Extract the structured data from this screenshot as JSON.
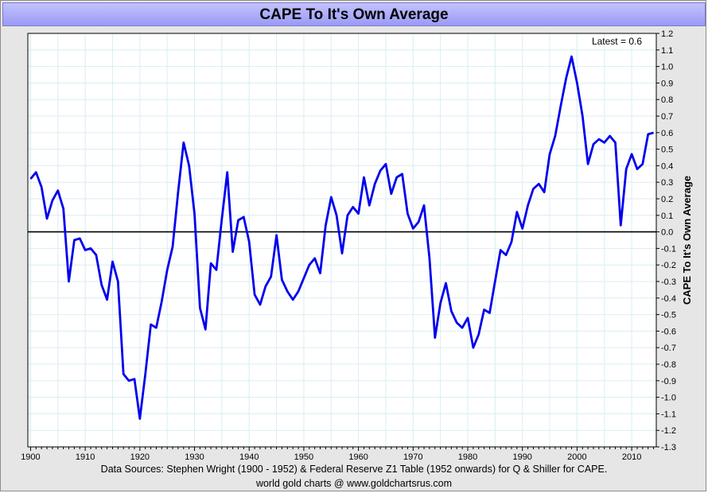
{
  "chart_data": {
    "type": "line",
    "title": "CAPE To It's Own Average",
    "ylabel": "CAPE To It's Own Average",
    "xlabel": "",
    "annotation": "Latest = 0.6",
    "xlim": [
      1899.5,
      2014.5
    ],
    "ylim": [
      -1.3,
      1.2
    ],
    "x_ticks": [
      1900,
      1910,
      1920,
      1930,
      1940,
      1950,
      1960,
      1970,
      1980,
      1990,
      2000,
      2010
    ],
    "y_ticks": [
      "1.2",
      "1.1",
      "1.0",
      "0.9",
      "0.8",
      "0.7",
      "0.6",
      "0.5",
      "0.4",
      "0.3",
      "0.2",
      "0.1",
      "0.0",
      "-0.1",
      "-0.2",
      "-0.3",
      "-0.4",
      "-0.5",
      "-0.6",
      "-0.7",
      "-0.8",
      "-0.9",
      "-1.0",
      "-1.1",
      "-1.2",
      "-1.3"
    ],
    "grid": true,
    "line_color": "#0000ee",
    "zero_line_color": "#000000",
    "series": [
      {
        "name": "",
        "x": [
          1900,
          1901,
          1902,
          1903,
          1904,
          1905,
          1906,
          1907,
          1908,
          1909,
          1910,
          1911,
          1912,
          1913,
          1914,
          1915,
          1916,
          1917,
          1918,
          1919,
          1920,
          1921,
          1922,
          1923,
          1924,
          1925,
          1926,
          1927,
          1928,
          1929,
          1930,
          1931,
          1932,
          1933,
          1934,
          1935,
          1936,
          1937,
          1938,
          1939,
          1940,
          1941,
          1942,
          1943,
          1944,
          1945,
          1946,
          1947,
          1948,
          1949,
          1950,
          1951,
          1952,
          1953,
          1954,
          1955,
          1956,
          1957,
          1958,
          1959,
          1960,
          1961,
          1962,
          1963,
          1964,
          1965,
          1966,
          1967,
          1968,
          1969,
          1970,
          1971,
          1972,
          1973,
          1974,
          1975,
          1976,
          1977,
          1978,
          1979,
          1980,
          1981,
          1982,
          1983,
          1984,
          1985,
          1986,
          1987,
          1988,
          1989,
          1990,
          1991,
          1992,
          1993,
          1994,
          1995,
          1996,
          1997,
          1998,
          1999,
          2000,
          2001,
          2002,
          2003,
          2004,
          2005,
          2006,
          2007,
          2008,
          2009,
          2010,
          2011,
          2012,
          2013,
          2014
        ],
        "y": [
          0.32,
          0.36,
          0.27,
          0.08,
          0.19,
          0.25,
          0.14,
          -0.3,
          -0.05,
          -0.04,
          -0.11,
          -0.1,
          -0.14,
          -0.32,
          -0.41,
          -0.18,
          -0.3,
          -0.86,
          -0.9,
          -0.89,
          -1.13,
          -0.86,
          -0.56,
          -0.58,
          -0.42,
          -0.23,
          -0.09,
          0.24,
          0.54,
          0.4,
          0.11,
          -0.46,
          -0.59,
          -0.19,
          -0.23,
          0.08,
          0.36,
          -0.12,
          0.07,
          0.09,
          -0.06,
          -0.38,
          -0.44,
          -0.33,
          -0.27,
          -0.02,
          -0.29,
          -0.36,
          -0.41,
          -0.36,
          -0.28,
          -0.2,
          -0.16,
          -0.25,
          0.04,
          0.21,
          0.1,
          -0.13,
          0.1,
          0.15,
          0.11,
          0.33,
          0.16,
          0.29,
          0.37,
          0.41,
          0.23,
          0.33,
          0.35,
          0.11,
          0.02,
          0.06,
          0.16,
          -0.16,
          -0.64,
          -0.43,
          -0.31,
          -0.48,
          -0.55,
          -0.58,
          -0.52,
          -0.7,
          -0.62,
          -0.47,
          -0.49,
          -0.3,
          -0.11,
          -0.14,
          -0.06,
          0.12,
          0.02,
          0.16,
          0.26,
          0.29,
          0.24,
          0.47,
          0.58,
          0.76,
          0.93,
          1.06,
          0.9,
          0.7,
          0.41,
          0.53,
          0.56,
          0.54,
          0.58,
          0.54,
          0.04,
          0.38,
          0.47,
          0.38,
          0.41,
          0.59,
          0.6
        ]
      }
    ]
  },
  "footer": {
    "sources": "Data Sources: Stephen Wright (1900 - 1952) & Federal Reserve Z1 Table (1952 onwards) for Q & Shiller for CAPE.",
    "credit": "world gold charts @ www.goldchartsrus.com"
  }
}
